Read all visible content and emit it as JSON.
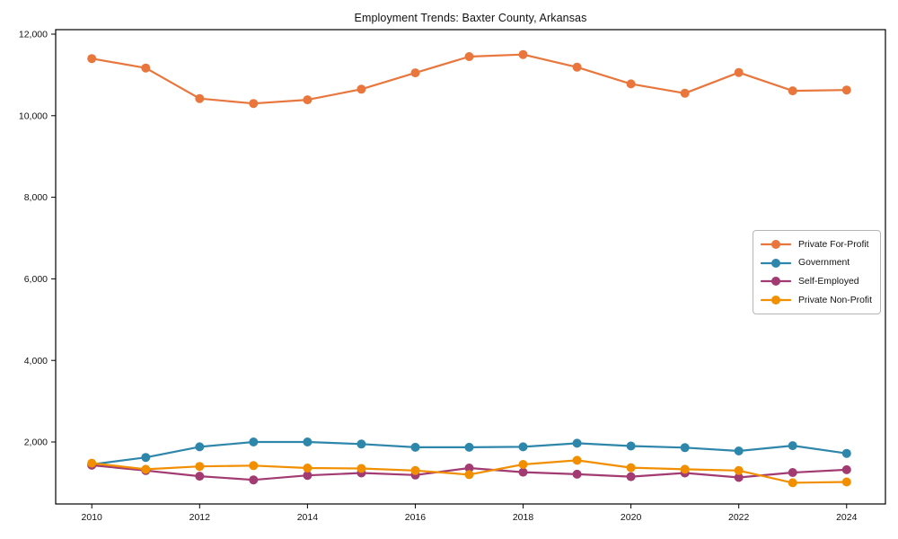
{
  "chart_data": {
    "type": "line",
    "title": "Employment Trends: Baxter County, Arkansas",
    "xlabel": "",
    "ylabel": "",
    "grid": false,
    "legend_position": "center-right",
    "marker": "circle",
    "background": "#ffffff",
    "axis_color": "#000000",
    "x": [
      2010,
      2011,
      2012,
      2013,
      2014,
      2015,
      2016,
      2017,
      2018,
      2019,
      2020,
      2021,
      2022,
      2023,
      2024
    ],
    "series": [
      {
        "name": "Private For-Profit",
        "color": "#e8763d",
        "values": [
          11400,
          11170,
          10420,
          10300,
          10390,
          10650,
          11050,
          11450,
          11500,
          11190,
          10780,
          10550,
          11060,
          10610,
          10630
        ]
      },
      {
        "name": "Government",
        "color": "#2e86ab",
        "values": [
          1450,
          1620,
          1880,
          2000,
          2000,
          1950,
          1870,
          1870,
          1880,
          1970,
          1900,
          1860,
          1780,
          1910,
          1720
        ]
      },
      {
        "name": "Self-Employed",
        "color": "#a23b72",
        "values": [
          1430,
          1300,
          1160,
          1070,
          1180,
          1240,
          1190,
          1360,
          1260,
          1210,
          1150,
          1240,
          1130,
          1250,
          1320
        ]
      },
      {
        "name": "Private Non-Profit",
        "color": "#f18f01",
        "values": [
          1480,
          1330,
          1400,
          1420,
          1360,
          1350,
          1300,
          1200,
          1450,
          1550,
          1370,
          1330,
          1300,
          1000,
          1020
        ]
      }
    ],
    "xlim": [
      2009.33,
      2024.72
    ],
    "ylim": [
      480,
      12110
    ],
    "x_ticks": {
      "values": [
        2010,
        2012,
        2014,
        2016,
        2018,
        2020,
        2022,
        2024
      ],
      "labels": [
        "2010",
        "2012",
        "2014",
        "2016",
        "2018",
        "2020",
        "2022",
        "2024"
      ]
    },
    "y_ticks": {
      "values": [
        2000,
        4000,
        6000,
        8000,
        10000,
        12000
      ],
      "labels": [
        "2,000",
        "4,000",
        "6,000",
        "8,000",
        "10,000",
        "12,000"
      ]
    }
  }
}
